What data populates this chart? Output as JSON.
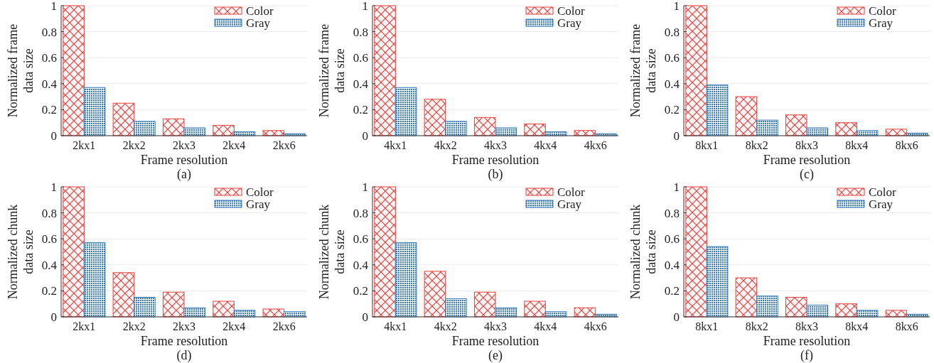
{
  "chart_data": [
    {
      "type": "bar",
      "title": "(a)",
      "xlabel": "Frame resolution",
      "ylabel": "Normalized frame\ndata size",
      "categories": [
        "2kx1",
        "2kx2",
        "2kx3",
        "2kx4",
        "2kx6"
      ],
      "series": [
        {
          "name": "Color",
          "color": "#e8413c",
          "values": [
            1,
            0.25,
            0.13,
            0.08,
            0.04
          ]
        },
        {
          "name": "Gray",
          "color": "#3a7bbf",
          "values": [
            0.37,
            0.11,
            0.06,
            0.03,
            0.015
          ]
        }
      ],
      "ylim": [
        0,
        1
      ],
      "yticks": [
        0,
        0.2,
        0.4,
        0.6,
        0.8,
        1
      ],
      "grid": "y",
      "legend": "top right"
    },
    {
      "type": "bar",
      "title": "(b)",
      "xlabel": "Frame resolution",
      "ylabel": "Normalized frame\ndata size",
      "categories": [
        "4kx1",
        "4kx2",
        "4kx3",
        "4kx4",
        "4kx6"
      ],
      "series": [
        {
          "name": "Color",
          "color": "#e8413c",
          "values": [
            1,
            0.28,
            0.14,
            0.09,
            0.04
          ]
        },
        {
          "name": "Gray",
          "color": "#3a7bbf",
          "values": [
            0.37,
            0.11,
            0.06,
            0.03,
            0.015
          ]
        }
      ],
      "ylim": [
        0,
        1
      ],
      "yticks": [
        0,
        0.2,
        0.4,
        0.6,
        0.8,
        1
      ],
      "grid": "y",
      "legend": "top right"
    },
    {
      "type": "bar",
      "title": "(c)",
      "xlabel": "Frame resolution",
      "ylabel": "Normalized frame\ndata size",
      "categories": [
        "8kx1",
        "8kx2",
        "8kx3",
        "8kx4",
        "8kx6"
      ],
      "series": [
        {
          "name": "Color",
          "color": "#e8413c",
          "values": [
            1,
            0.3,
            0.16,
            0.1,
            0.05
          ]
        },
        {
          "name": "Gray",
          "color": "#3a7bbf",
          "values": [
            0.39,
            0.12,
            0.06,
            0.04,
            0.02
          ]
        }
      ],
      "ylim": [
        0,
        1
      ],
      "yticks": [
        0,
        0.2,
        0.4,
        0.6,
        0.8,
        1
      ],
      "grid": "y",
      "legend": "top right"
    },
    {
      "type": "bar",
      "title": "(d)",
      "xlabel": "Frame resolution",
      "ylabel": "Normalized chunk\ndata size",
      "categories": [
        "2kx1",
        "2kx2",
        "2kx3",
        "2kx4",
        "2kx6"
      ],
      "series": [
        {
          "name": "Color",
          "color": "#e8413c",
          "values": [
            1,
            0.34,
            0.19,
            0.12,
            0.06
          ]
        },
        {
          "name": "Gray",
          "color": "#3a7bbf",
          "values": [
            0.57,
            0.15,
            0.07,
            0.05,
            0.04
          ]
        }
      ],
      "ylim": [
        0,
        1
      ],
      "yticks": [
        0,
        0.2,
        0.4,
        0.6,
        0.8,
        1
      ],
      "grid": "y",
      "legend": "top right"
    },
    {
      "type": "bar",
      "title": "(e)",
      "xlabel": "Frame resolution",
      "ylabel": "Normalized chunk\ndata size",
      "categories": [
        "4kx1",
        "4kx2",
        "4kx3",
        "4kx4",
        "4kx6"
      ],
      "series": [
        {
          "name": "Color",
          "color": "#e8413c",
          "values": [
            1,
            0.35,
            0.19,
            0.12,
            0.07
          ]
        },
        {
          "name": "Gray",
          "color": "#3a7bbf",
          "values": [
            0.57,
            0.14,
            0.07,
            0.04,
            0.02
          ]
        }
      ],
      "ylim": [
        0,
        1
      ],
      "yticks": [
        0,
        0.2,
        0.4,
        0.6,
        0.8,
        1
      ],
      "grid": "y",
      "legend": "top right"
    },
    {
      "type": "bar",
      "title": "(f)",
      "xlabel": "Frame resolution",
      "ylabel": "Normalized chunk\ndata size",
      "categories": [
        "8kx1",
        "8kx2",
        "8kx3",
        "8kx4",
        "8kx6"
      ],
      "series": [
        {
          "name": "Color",
          "color": "#e8413c",
          "values": [
            1,
            0.3,
            0.15,
            0.1,
            0.05
          ]
        },
        {
          "name": "Gray",
          "color": "#3a7bbf",
          "values": [
            0.54,
            0.16,
            0.09,
            0.05,
            0.02
          ]
        }
      ],
      "ylim": [
        0,
        1
      ],
      "yticks": [
        0,
        0.2,
        0.4,
        0.6,
        0.8,
        1
      ],
      "grid": "y",
      "legend": "top right"
    }
  ]
}
